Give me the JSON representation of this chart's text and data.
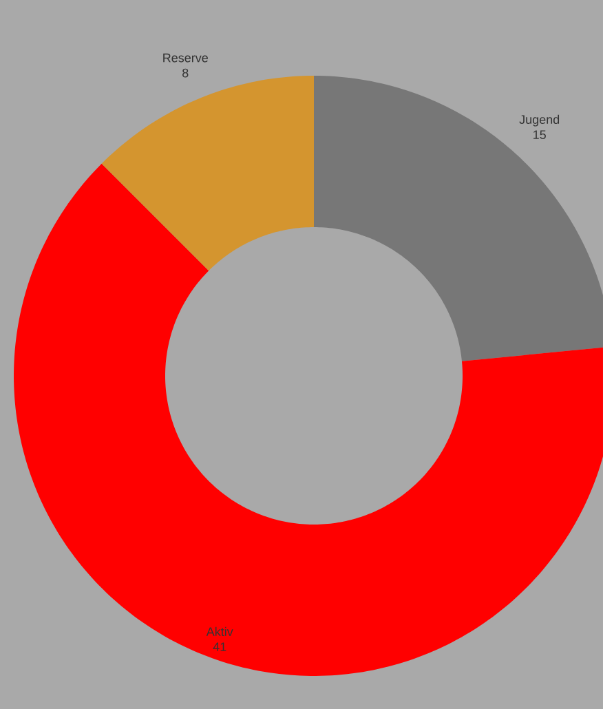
{
  "chart_data": {
    "type": "donut",
    "categories": [
      "Jugend",
      "Aktiv",
      "Reserve"
    ],
    "values": [
      15,
      41,
      8
    ],
    "colors": [
      "#777777",
      "#ff0000",
      "#d4952f"
    ],
    "data_labels": true
  }
}
